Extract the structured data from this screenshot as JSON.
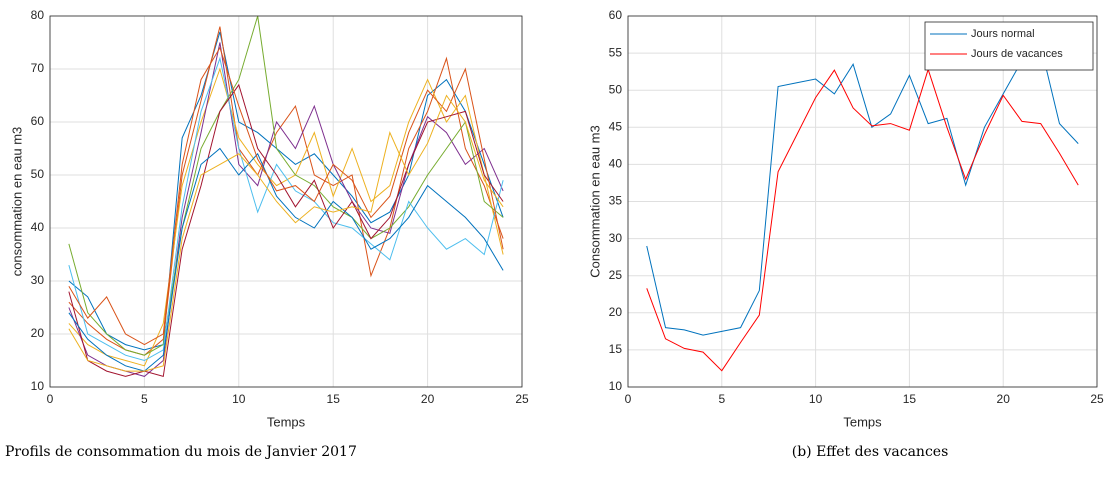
{
  "chart_data": [
    {
      "type": "line",
      "caption": "Profils de consommation du mois de Janvier 2017",
      "xlabel": "Temps",
      "ylabel": "consommation en eau m3",
      "x": [
        1,
        2,
        3,
        4,
        5,
        6,
        7,
        8,
        9,
        10,
        11,
        12,
        13,
        14,
        15,
        16,
        17,
        18,
        19,
        20,
        21,
        22,
        23,
        24
      ],
      "xlim": [
        0,
        25
      ],
      "xticks": [
        0,
        5,
        10,
        15,
        20,
        25
      ],
      "ylim": [
        10,
        80
      ],
      "yticks": [
        10,
        20,
        30,
        40,
        50,
        60,
        70,
        80
      ],
      "grid": true,
      "series": [
        {
          "color": "#0072bd",
          "values": [
            30,
            27,
            20,
            18,
            17,
            18,
            57,
            65,
            77,
            60,
            58,
            55,
            52,
            54,
            50,
            46,
            41,
            43,
            50,
            65,
            68,
            62,
            52,
            42
          ]
        },
        {
          "color": "#d95319",
          "values": [
            26,
            22,
            19,
            17,
            16,
            19,
            50,
            64,
            78,
            55,
            50,
            58,
            63,
            50,
            48,
            50,
            31,
            40,
            55,
            62,
            72,
            55,
            48,
            38
          ]
        },
        {
          "color": "#edb120",
          "values": [
            22,
            18,
            16,
            15,
            14,
            22,
            48,
            60,
            70,
            57,
            52,
            48,
            50,
            58,
            46,
            55,
            45,
            48,
            60,
            68,
            60,
            65,
            50,
            35
          ]
        },
        {
          "color": "#7e2f8e",
          "values": [
            25,
            16,
            14,
            13,
            12,
            15,
            42,
            58,
            75,
            52,
            48,
            60,
            55,
            63,
            52,
            45,
            40,
            39,
            52,
            61,
            58,
            52,
            55,
            47
          ]
        },
        {
          "color": "#77ac30",
          "values": [
            37,
            24,
            20,
            17,
            16,
            18,
            40,
            55,
            62,
            68,
            80,
            55,
            50,
            48,
            44,
            42,
            38,
            40,
            44,
            50,
            55,
            60,
            45,
            42
          ]
        },
        {
          "color": "#4dbeee",
          "values": [
            33,
            20,
            18,
            16,
            15,
            17,
            44,
            62,
            72,
            55,
            43,
            52,
            47,
            45,
            41,
            40,
            37,
            34,
            45,
            40,
            36,
            38,
            35,
            49
          ]
        },
        {
          "color": "#a2142f",
          "values": [
            28,
            15,
            13,
            12,
            13,
            12,
            36,
            48,
            62,
            67,
            55,
            50,
            44,
            49,
            40,
            45,
            38,
            42,
            52,
            60,
            61,
            62,
            50,
            45
          ]
        },
        {
          "color": "#0072bd",
          "values": [
            24,
            19,
            16,
            14,
            13,
            16,
            40,
            52,
            55,
            50,
            54,
            46,
            42,
            40,
            45,
            42,
            36,
            38,
            42,
            48,
            45,
            42,
            38,
            32
          ]
        },
        {
          "color": "#d95319",
          "values": [
            29,
            23,
            27,
            20,
            18,
            20,
            52,
            68,
            74,
            63,
            53,
            47,
            48,
            45,
            52,
            49,
            42,
            46,
            58,
            66,
            62,
            70,
            53,
            36
          ]
        },
        {
          "color": "#edb120",
          "values": [
            21,
            15,
            14,
            13,
            13,
            14,
            38,
            50,
            52,
            54,
            50,
            45,
            41,
            44,
            43,
            44,
            43,
            58,
            50,
            56,
            65,
            60,
            49,
            44
          ]
        }
      ]
    },
    {
      "type": "line",
      "caption": "(b) Effet des vacances",
      "xlabel": "Temps",
      "ylabel": "Consommation en eau m3",
      "x": [
        1,
        2,
        3,
        4,
        5,
        6,
        7,
        8,
        9,
        10,
        11,
        12,
        13,
        14,
        15,
        16,
        17,
        18,
        19,
        20,
        21,
        22,
        23,
        24
      ],
      "xlim": [
        0,
        25
      ],
      "xticks": [
        0,
        5,
        10,
        15,
        20,
        25
      ],
      "ylim": [
        10,
        60
      ],
      "yticks": [
        10,
        15,
        20,
        25,
        30,
        35,
        40,
        45,
        50,
        55,
        60
      ],
      "grid": true,
      "legend": "northeast",
      "series": [
        {
          "name": "Jours normal",
          "color": "#0072bd",
          "values": [
            29,
            18,
            17.7,
            17,
            17.5,
            18,
            23,
            50.5,
            51,
            51.5,
            49.5,
            53.5,
            45,
            46.8,
            52,
            45.5,
            46.2,
            37.2,
            45,
            49.5,
            54,
            56,
            45.5,
            42.8
          ]
        },
        {
          "name": "Jours de vacances",
          "color": "#ff0000",
          "values": [
            23.3,
            16.5,
            15.2,
            14.7,
            12.2,
            16,
            19.7,
            39,
            44,
            49,
            52.7,
            47.6,
            45.2,
            45.5,
            44.6,
            52.8,
            45,
            38,
            44,
            49.3,
            45.8,
            45.5,
            41.5,
            37.2
          ]
        }
      ]
    }
  ]
}
